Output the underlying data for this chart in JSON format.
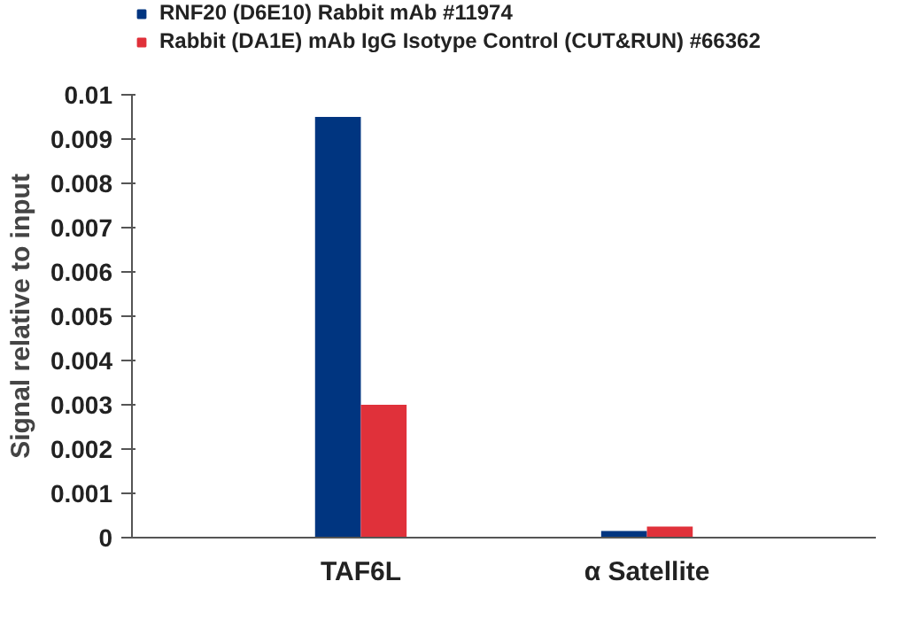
{
  "chart_data": {
    "type": "bar",
    "ylabel": "Signal relative to input",
    "categories": [
      "TAF6L",
      "α Satellite"
    ],
    "series": [
      {
        "name": "RNF20 (D6E10) Rabbit mAb #11974",
        "color": "#003580",
        "values": [
          0.0095,
          0.00015
        ]
      },
      {
        "name": "Rabbit (DA1E) mAb IgG Isotype Control (CUT&RUN) #66362",
        "color": "#e0313a",
        "values": [
          0.003,
          0.00025
        ]
      }
    ],
    "ylim": [
      0,
      0.01
    ],
    "yticks": [
      0,
      0.001,
      0.002,
      0.003,
      0.004,
      0.005,
      0.006,
      0.007,
      0.008,
      0.009,
      0.01
    ],
    "grid": false,
    "legend": "top left"
  }
}
